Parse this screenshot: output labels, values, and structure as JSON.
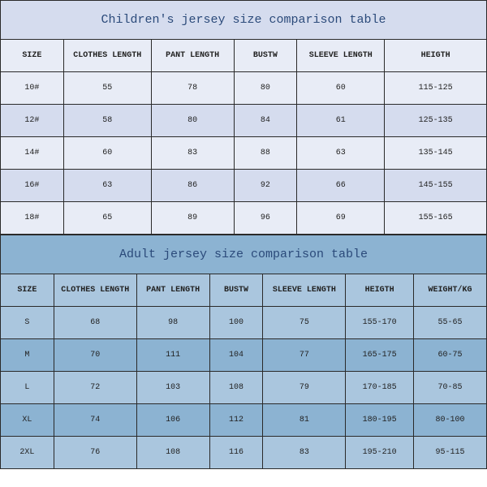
{
  "children": {
    "title": "Children's jersey size comparison table",
    "columns": [
      "SIZE",
      "CLOTHES LENGTH",
      "PANT LENGTH",
      "BUSTW",
      "SLEEVE LENGTH",
      "HEIGTH"
    ],
    "col_widths_pct": [
      13,
      18,
      17,
      13,
      18,
      21
    ],
    "rows": [
      [
        "10#",
        "55",
        "78",
        "80",
        "60",
        "115-125"
      ],
      [
        "12#",
        "58",
        "80",
        "84",
        "61",
        "125-135"
      ],
      [
        "14#",
        "60",
        "83",
        "88",
        "63",
        "135-145"
      ],
      [
        "16#",
        "63",
        "86",
        "92",
        "66",
        "145-155"
      ],
      [
        "18#",
        "65",
        "89",
        "96",
        "69",
        "155-165"
      ]
    ],
    "title_fontsize": 15,
    "head_fontsize": 10,
    "cell_fontsize": 10,
    "title_color": "#2b4a7a",
    "band_light": "#e8ecf6",
    "band_dark": "#d5dcee",
    "border_color": "#2a2a2a"
  },
  "adult": {
    "title": "Adult jersey size comparison table",
    "columns": [
      "SIZE",
      "CLOTHES LENGTH",
      "PANT LENGTH",
      "BUSTW",
      "SLEEVE LENGTH",
      "HEIGTH",
      "WEIGHT/KG"
    ],
    "col_widths_pct": [
      11,
      17,
      15,
      11,
      17,
      14,
      15
    ],
    "rows": [
      [
        "S",
        "68",
        "98",
        "100",
        "75",
        "155-170",
        "55-65"
      ],
      [
        "M",
        "70",
        "111",
        "104",
        "77",
        "165-175",
        "60-75"
      ],
      [
        "L",
        "72",
        "103",
        "108",
        "79",
        "170-185",
        "70-85"
      ],
      [
        "XL",
        "74",
        "106",
        "112",
        "81",
        "180-195",
        "80-100"
      ],
      [
        "2XL",
        "76",
        "108",
        "116",
        "83",
        "195-210",
        "95-115"
      ]
    ],
    "title_fontsize": 15,
    "head_fontsize": 10,
    "cell_fontsize": 10,
    "title_color": "#2b4a7a",
    "band_light": "#aac6de",
    "band_dark": "#8cb3d2",
    "border_color": "#2a2a2a"
  }
}
